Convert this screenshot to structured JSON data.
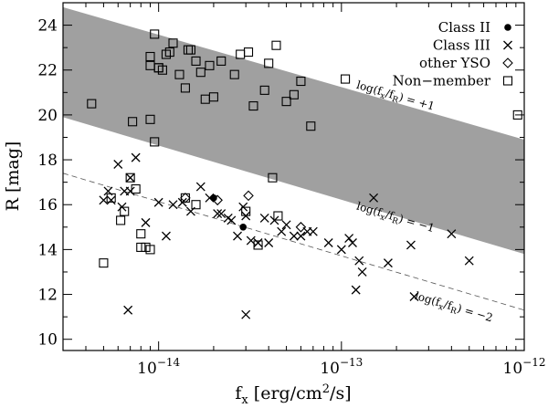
{
  "chart_data": {
    "type": "scatter",
    "title": "",
    "xlabel": "f_x [erg/cm²/s]",
    "ylabel": "R [mag]",
    "xscale": "log",
    "xlim": [
      3e-15,
      1e-12
    ],
    "ylim": [
      9.5,
      25
    ],
    "x_ticks": [
      1e-14,
      1e-13,
      1e-12
    ],
    "x_tick_labels": [
      {
        "base": "10",
        "exp": "−14"
      },
      {
        "base": "10",
        "exp": "−13"
      },
      {
        "base": "10",
        "exp": "−12"
      }
    ],
    "y_ticks": [
      10,
      12,
      14,
      16,
      18,
      20,
      22,
      24
    ],
    "legend": {
      "position": "top-right",
      "entries": [
        {
          "label": "Class II",
          "marker": "filled-circle"
        },
        {
          "label": "Class III",
          "marker": "cross"
        },
        {
          "label": "other YSO",
          "marker": "diamond"
        },
        {
          "label": "Non−member",
          "marker": "square"
        }
      ]
    },
    "band": {
      "color": "#a0a0a0",
      "description": "shaded region between log(fx/fR)=+1 and log(fx/fR)=-1"
    },
    "reference_lines": [
      {
        "label": "log(f_x/f_R) = +1",
        "style": "band-edge",
        "p1": [
          3e-15,
          24.8
        ],
        "p2": [
          1e-12,
          18.9
        ]
      },
      {
        "label": "log(f_x/f_R) = −1",
        "style": "band-edge",
        "p1": [
          3e-15,
          19.9
        ],
        "p2": [
          1e-12,
          13.8
        ]
      },
      {
        "label": "log(f_x/f_R) = −2",
        "style": "dashed",
        "p1": [
          3e-15,
          17.4
        ],
        "p2": [
          1e-12,
          11.3
        ]
      }
    ],
    "annotations": [
      {
        "base": "log(f",
        "sub1": "x",
        "mid": "/f",
        "sub2": "R",
        "tail": ") = +1",
        "at": [
          1.2e-13,
          21.2
        ]
      },
      {
        "base": "log(f",
        "sub1": "x",
        "mid": "/f",
        "sub2": "R",
        "tail": ") = −1",
        "at": [
          1.2e-13,
          15.8
        ]
      },
      {
        "base": "log(f",
        "sub1": "x",
        "mid": "/f",
        "sub2": "R",
        "tail": ") = −2",
        "at": [
          2.5e-13,
          11.8
        ]
      }
    ],
    "series": [
      {
        "name": "Class II",
        "marker": "filled-circle",
        "x": [
          2e-14,
          2.9e-14
        ],
        "y": [
          16.3,
          15.0
        ]
      },
      {
        "name": "Class III",
        "marker": "cross",
        "x": [
          5e-15,
          5.3e-15,
          5.5e-15,
          6e-15,
          6.3e-15,
          6.5e-15,
          6.8e-15,
          7e-15,
          7.5e-15,
          8.5e-15,
          1e-14,
          1.1e-14,
          1.2e-14,
          1.35e-14,
          1.5e-14,
          1.7e-14,
          1.9e-14,
          2.1e-14,
          2.2e-14,
          2.4e-14,
          2.5e-14,
          2.7e-14,
          2.9e-14,
          3e-14,
          3.2e-14,
          3.5e-14,
          3.8e-14,
          4e-14,
          4.3e-14,
          4.7e-14,
          5e-14,
          5.5e-14,
          6e-14,
          6.5e-14,
          7e-14,
          8.5e-14,
          1e-13,
          1.1e-13,
          1.15e-13,
          1.2e-13,
          1.25e-13,
          1.3e-13,
          1.5e-13,
          1.8e-13,
          2.4e-13,
          4e-13,
          5e-13,
          7e-15,
          3e-14,
          2.5e-13
        ],
        "y": [
          16.2,
          16.6,
          16.2,
          17.8,
          15.9,
          16.6,
          11.3,
          17.2,
          18.1,
          15.2,
          16.1,
          14.6,
          16.0,
          16.1,
          15.7,
          16.8,
          16.3,
          15.6,
          15.6,
          15.4,
          15.3,
          14.6,
          15.9,
          11.1,
          14.4,
          14.3,
          15.4,
          14.3,
          15.3,
          14.8,
          15.1,
          14.6,
          14.6,
          14.8,
          14.8,
          14.3,
          14.0,
          14.5,
          14.3,
          12.2,
          13.5,
          13.0,
          16.3,
          13.4,
          14.2,
          14.7,
          13.5,
          16.6,
          15.5,
          11.9
        ]
      },
      {
        "name": "other YSO",
        "marker": "diamond",
        "x": [
          1.4e-14,
          2.1e-14,
          3.1e-14,
          6e-14
        ],
        "y": [
          16.3,
          16.2,
          16.4,
          15.0
        ]
      },
      {
        "name": "Non−member",
        "marker": "square",
        "x": [
          4.3e-15,
          5e-15,
          5.5e-15,
          6.2e-15,
          6.5e-15,
          7e-15,
          7.2e-15,
          7.5e-15,
          8e-15,
          8.5e-15,
          9e-15,
          9.5e-15,
          9.5e-15,
          1e-14,
          1.05e-14,
          1.1e-14,
          1.15e-14,
          1.2e-14,
          1.3e-14,
          1.4e-14,
          1.45e-14,
          1.5e-14,
          1.6e-14,
          1.7e-14,
          1.8e-14,
          1.9e-14,
          2e-14,
          2.2e-14,
          2.6e-14,
          2.8e-14,
          3.1e-14,
          3.3e-14,
          3.8e-14,
          4e-14,
          4.2e-14,
          4.4e-14,
          5e-14,
          5.5e-14,
          6e-14,
          6.8e-14,
          1.05e-13,
          9.2e-13,
          8e-15,
          9e-15,
          9e-15,
          1e-14,
          1.4e-14,
          1.6e-14,
          3e-14,
          3.5e-14,
          4.5e-14,
          9e-15
        ],
        "y": [
          20.5,
          13.4,
          16.3,
          15.3,
          15.7,
          17.2,
          19.7,
          16.7,
          14.1,
          14.1,
          19.8,
          23.6,
          18.8,
          22.1,
          22.0,
          22.7,
          22.8,
          23.2,
          21.8,
          21.2,
          22.9,
          22.9,
          22.4,
          21.9,
          20.7,
          22.2,
          20.8,
          22.4,
          21.8,
          22.7,
          22.8,
          20.4,
          21.1,
          22.3,
          17.2,
          23.1,
          20.6,
          20.9,
          21.5,
          19.5,
          21.6,
          20.0,
          14.7,
          14.0,
          22.2,
          22.1,
          16.3,
          16.0,
          15.7,
          14.2,
          15.5,
          22.6
        ]
      }
    ]
  }
}
